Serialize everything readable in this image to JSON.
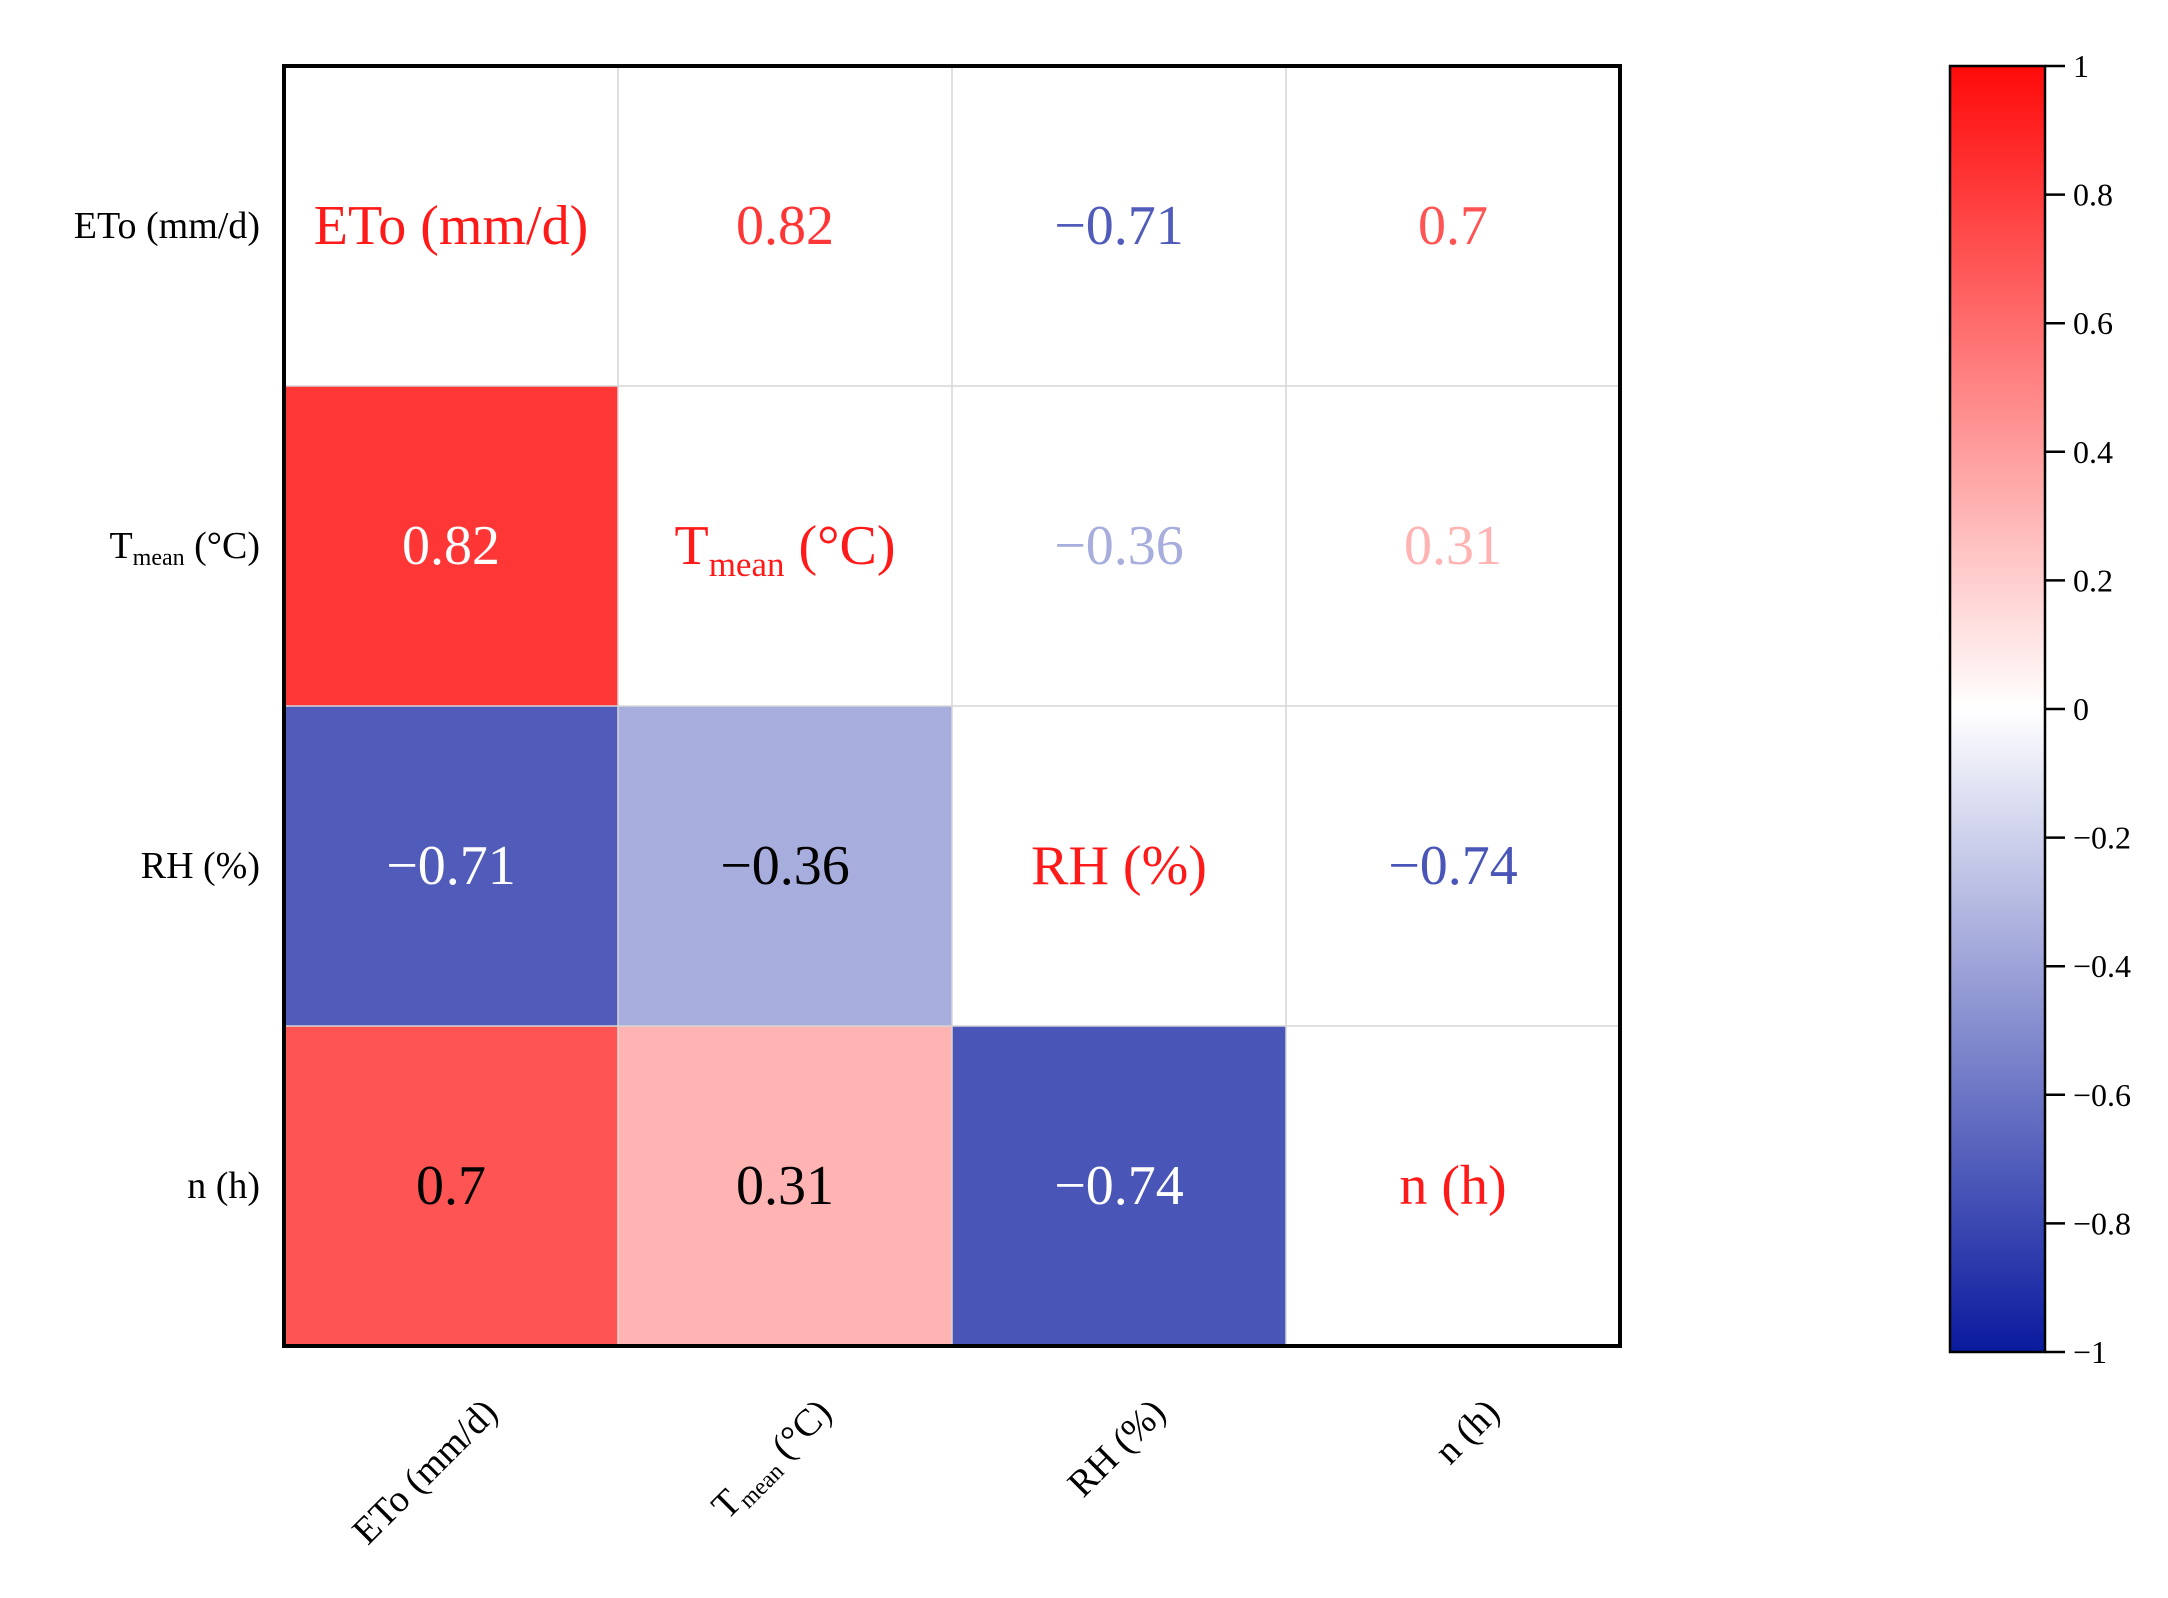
{
  "chart_data": {
    "type": "heatmap",
    "title": "",
    "variables": [
      "ETo (mm/d)",
      "Tmean (°C)",
      "RH (%)",
      "n (h)"
    ],
    "labels": [
      {
        "main": "ETo (mm/d)",
        "sub": ""
      },
      {
        "main": "T",
        "sub": "mean",
        "suffix": " (°C)"
      },
      {
        "main": "RH (%)",
        "sub": ""
      },
      {
        "main": "n (h)",
        "sub": ""
      }
    ],
    "matrix": [
      [
        1,
        0.82,
        -0.71,
        0.7
      ],
      [
        0.82,
        1,
        -0.36,
        0.31
      ],
      [
        -0.71,
        -0.36,
        1,
        -0.74
      ],
      [
        0.7,
        0.31,
        -0.74,
        1
      ]
    ],
    "lower_triangle": "filled color cells with value labels",
    "upper_triangle": "value text colored by correlation",
    "diagonal": "variable names in red",
    "colorbar": {
      "range": [
        -1,
        1
      ],
      "ticks": [
        1,
        0.8,
        0.6,
        0.4,
        0.2,
        0,
        -0.2,
        -0.4,
        -0.6,
        -0.8,
        -1
      ],
      "tick_labels": [
        "1",
        "0.8",
        "0.6",
        "0.4",
        "0.2",
        "0",
        "−0.2",
        "−0.4",
        "−0.6",
        "−0.8",
        "−1"
      ],
      "colors": {
        "neg": "#0a1a9e",
        "zero": "#ffffff",
        "pos": "#ff0a0a"
      }
    },
    "grid": true,
    "legend": "colorbar right"
  }
}
